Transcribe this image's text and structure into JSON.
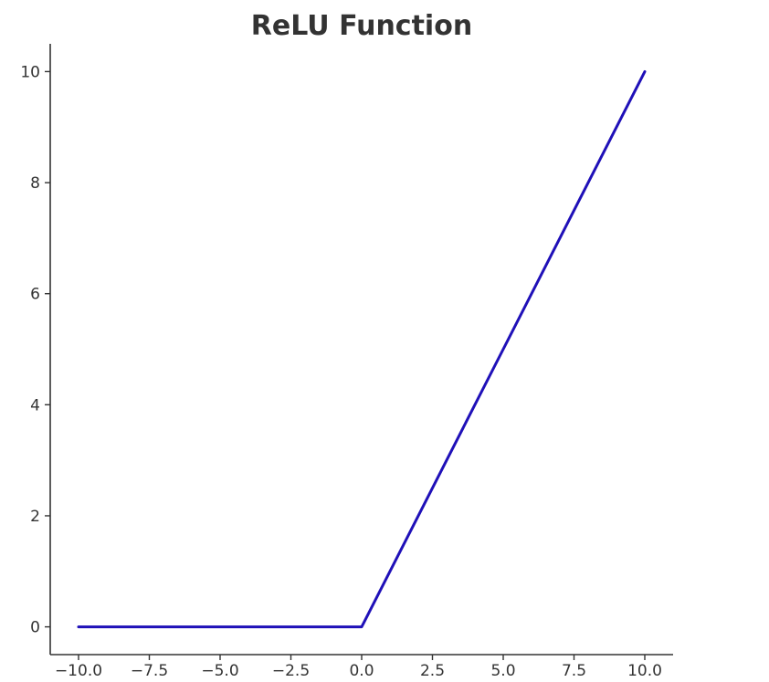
{
  "chart_data": {
    "type": "line",
    "title": "ReLU Function",
    "xlabel": "",
    "ylabel": "",
    "xlim": [
      -11,
      11
    ],
    "ylim": [
      -0.5,
      10.5
    ],
    "x_ticks": [
      -10.0,
      -7.5,
      -5.0,
      -2.5,
      0.0,
      2.5,
      5.0,
      7.5,
      10.0
    ],
    "x_tick_labels": [
      "−10.0",
      "−7.5",
      "−5.0",
      "−2.5",
      "0.0",
      "2.5",
      "5.0",
      "7.5",
      "10.0"
    ],
    "y_ticks": [
      0,
      2,
      4,
      6,
      8,
      10
    ],
    "y_tick_labels": [
      "0",
      "2",
      "4",
      "6",
      "8",
      "10"
    ],
    "grid": false,
    "legend": "none",
    "series": [
      {
        "color": "#1f10b8",
        "x": [
          -10,
          -7.5,
          -5,
          -2.5,
          -0.1,
          0,
          0.1,
          2.5,
          5,
          7.5,
          10
        ],
        "y": [
          0,
          0,
          0,
          0,
          0,
          0,
          0.1,
          2.5,
          5,
          7.5,
          10
        ]
      }
    ]
  }
}
